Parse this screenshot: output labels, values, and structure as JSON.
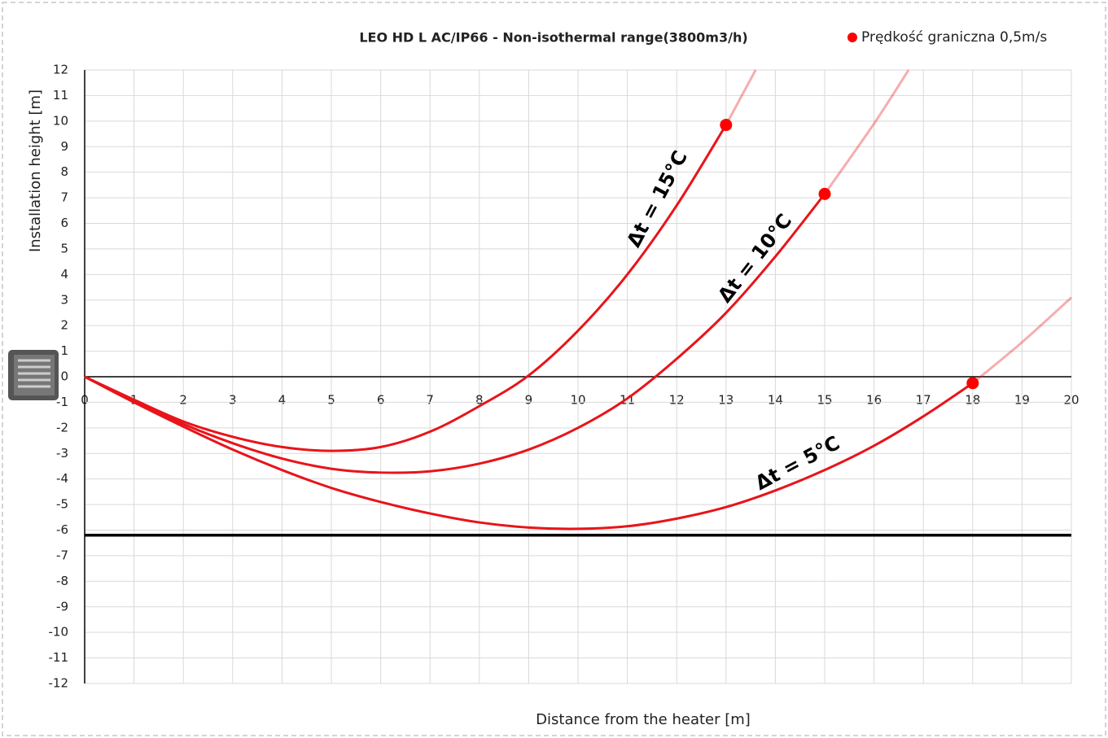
{
  "chart_data": {
    "type": "line",
    "title": "LEO HD L AC/IP66 - Non-isothermal range(3800m3/h)",
    "x_label": "Distance from the heater [m]",
    "y_label": "Installation height [m]",
    "xlim": [
      0,
      20
    ],
    "ylim": [
      -12,
      12
    ],
    "xticks": [
      0,
      1,
      2,
      3,
      4,
      5,
      6,
      7,
      8,
      9,
      10,
      11,
      12,
      13,
      14,
      15,
      16,
      17,
      18,
      19,
      20
    ],
    "yticks": [
      -12,
      -11,
      -10,
      -9,
      -8,
      -7,
      -6,
      -5,
      -4,
      -3,
      -2,
      -1,
      0,
      1,
      2,
      3,
      4,
      5,
      6,
      7,
      8,
      9,
      10,
      11,
      12
    ],
    "grid": true,
    "floor_level": -6.2,
    "series": [
      {
        "name": "Δt = 15°C",
        "color": "#e8141a",
        "x": [
          0,
          1,
          2,
          3,
          4,
          5,
          6,
          7,
          8,
          9,
          10,
          11,
          12,
          13,
          13.6
        ],
        "values": [
          0,
          -0.9,
          -1.75,
          -2.35,
          -2.75,
          -2.9,
          -2.75,
          -2.15,
          -1.15,
          0.05,
          1.8,
          4.0,
          6.7,
          9.85,
          12
        ]
      },
      {
        "name": "Δt = 10°C",
        "color": "#e8141a",
        "x": [
          0,
          1,
          2,
          3,
          4,
          5,
          6,
          7,
          8,
          9,
          10,
          11,
          12,
          13,
          14,
          15,
          16,
          16.7
        ],
        "values": [
          0,
          -0.95,
          -1.85,
          -2.6,
          -3.2,
          -3.6,
          -3.75,
          -3.7,
          -3.4,
          -2.85,
          -2.0,
          -0.85,
          0.7,
          2.5,
          4.7,
          7.15,
          9.9,
          12
        ]
      },
      {
        "name": "Δt = 5°C",
        "color": "#e8141a",
        "x": [
          0,
          1,
          2,
          3,
          4,
          5,
          6,
          7,
          8,
          9,
          10,
          11,
          12,
          13,
          14,
          15,
          16,
          17,
          18,
          19,
          20
        ],
        "values": [
          0,
          -1.0,
          -1.95,
          -2.85,
          -3.65,
          -4.35,
          -4.9,
          -5.35,
          -5.7,
          -5.9,
          -5.95,
          -5.85,
          -5.55,
          -5.1,
          -4.45,
          -3.65,
          -2.7,
          -1.55,
          -0.25,
          1.35,
          3.1
        ]
      }
    ],
    "limit_points": {
      "name": "Prędkość graniczna 0,5m/s",
      "color": "#ff0000",
      "x": [
        13,
        15,
        18
      ],
      "values": [
        9.85,
        7.15,
        -0.25
      ]
    }
  }
}
